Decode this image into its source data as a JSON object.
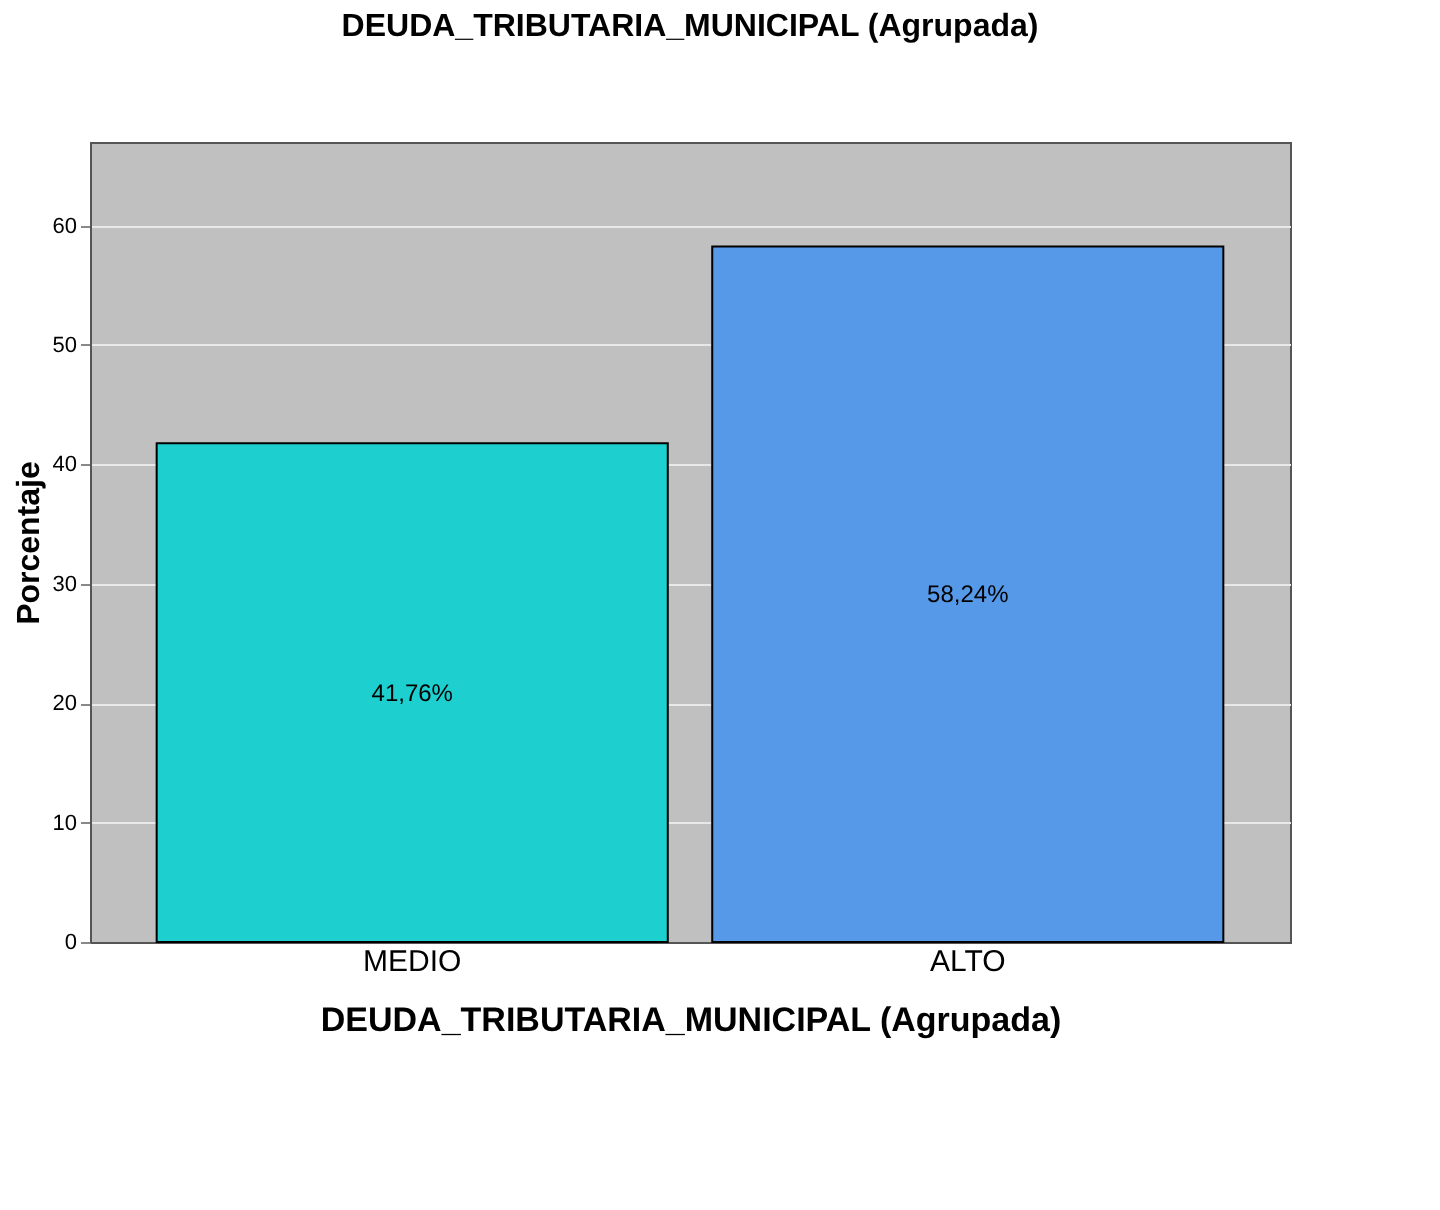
{
  "chart_data": {
    "type": "bar",
    "title": "DEUDA_TRIBUTARIA_MUNICIPAL (Agrupada)",
    "xlabel": "DEUDA_TRIBUTARIA_MUNICIPAL (Agrupada)",
    "ylabel": "Porcentaje",
    "categories": [
      "MEDIO",
      "ALTO"
    ],
    "values": [
      41.76,
      58.24
    ],
    "colors": [
      "#1ecfcf",
      "#5599e8"
    ],
    "value_labels": [
      "41,76%",
      "58,24%"
    ],
    "ylim": [
      0,
      67
    ],
    "yticks": [
      0,
      10,
      20,
      30,
      40,
      50,
      60
    ],
    "grid": "y"
  }
}
